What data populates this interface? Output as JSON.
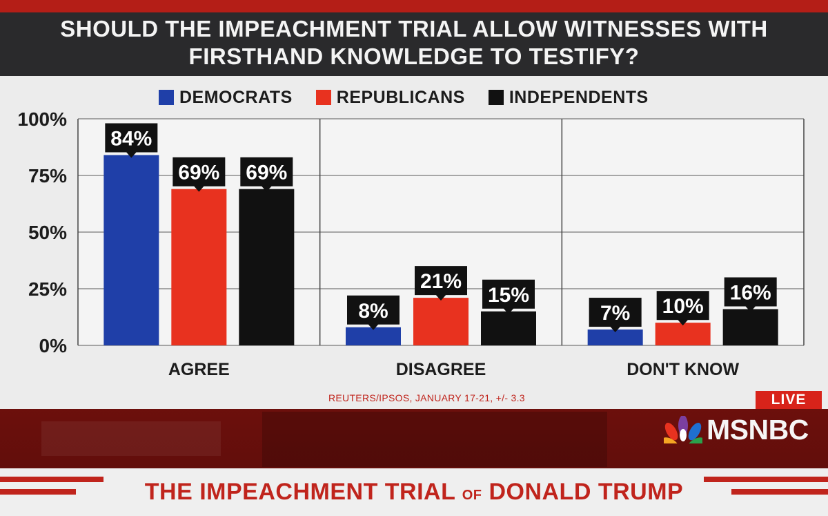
{
  "headline": "SHOULD THE IMPEACHMENT TRIAL ALLOW WITNESSES WITH FIRSTHAND KNOWLEDGE TO TESTIFY?",
  "colors": {
    "democrats": "#1f3fa8",
    "republicans": "#e8321f",
    "independents": "#111111",
    "accent_red": "#c0241c"
  },
  "chart_data": {
    "type": "bar",
    "title": "SHOULD THE IMPEACHMENT TRIAL ALLOW WITNESSES WITH FIRSTHAND KNOWLEDGE TO TESTIFY?",
    "categories": [
      "AGREE",
      "DISAGREE",
      "DON'T KNOW"
    ],
    "series": [
      {
        "name": "DEMOCRATS",
        "values": [
          84,
          8,
          7
        ],
        "labels": [
          "84%",
          "8%",
          "7%"
        ],
        "color": "#1f3fa8"
      },
      {
        "name": "REPUBLICANS",
        "values": [
          69,
          21,
          10
        ],
        "labels": [
          "69%",
          "21%",
          "10%"
        ],
        "color": "#e8321f"
      },
      {
        "name": "INDEPENDENTS",
        "values": [
          69,
          15,
          16
        ],
        "labels": [
          "69%",
          "15%",
          "16%"
        ],
        "color": "#111111"
      }
    ],
    "yticks": [
      0,
      25,
      50,
      75,
      100
    ],
    "ytick_labels": [
      "0%",
      "25%",
      "50%",
      "75%",
      "100%"
    ],
    "ylim": [
      0,
      100
    ],
    "grid": true,
    "legend": "top"
  },
  "source": "REUTERS/IPSOS, JANUARY 17-21, +/- 3.3",
  "live_label": "LIVE",
  "network": {
    "name": "MSNBC",
    "logo_icon": "peacock-icon"
  },
  "lower_third": {
    "part1": "THE IMPEACHMENT TRIAL",
    "part2": "OF",
    "part3": "DONALD TRUMP"
  }
}
